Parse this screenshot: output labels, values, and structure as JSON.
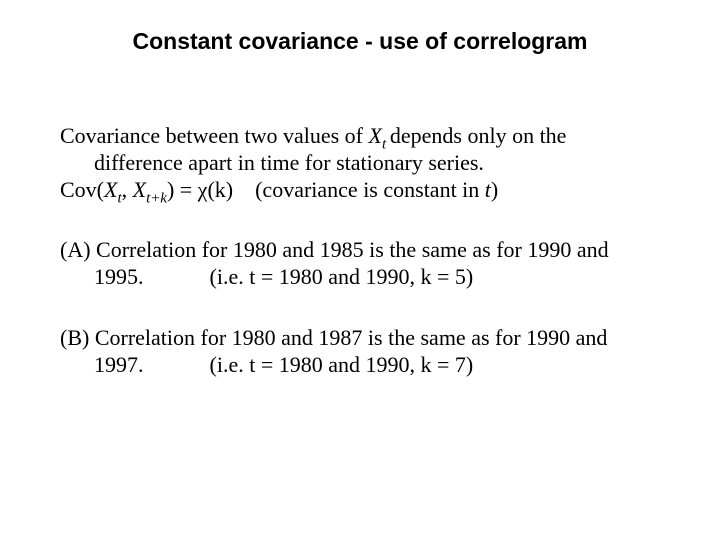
{
  "title": "Constant covariance - use of correlogram",
  "p1_l1_a": "Covariance between two values of ",
  "p1_l1_x": "X",
  "p1_l1_t": "t ",
  "p1_l1_b": "depends only on the",
  "p1_l2": "difference apart in time for stationary series.",
  "p2_a": "Cov(",
  "p2_x1": "X",
  "p2_s1": "t",
  "p2_comma": ", ",
  "p2_x2": "X",
  "p2_s2": "t+k",
  "p2_b": ") = χ(k)    (covariance is constant in ",
  "p2_t": "t",
  "p2_c": ")",
  "pa_l1": "(A) Correlation for 1980 and 1985 is the same as for 1990 and",
  "pa_l2": "1995.            (i.e. t = 1980 and 1990, k = 5)",
  "pb_l1": "(B) Correlation for 1980 and 1987 is the same as for 1990 and",
  "pb_l2": "1997.            (i.e. t = 1980 and 1990, k = 7)",
  "colors": {
    "text": "#000000",
    "background": "#ffffff"
  },
  "fonts": {
    "title_family": "Arial",
    "body_family": "Times New Roman",
    "title_size_pt": 17,
    "body_size_pt": 17
  }
}
